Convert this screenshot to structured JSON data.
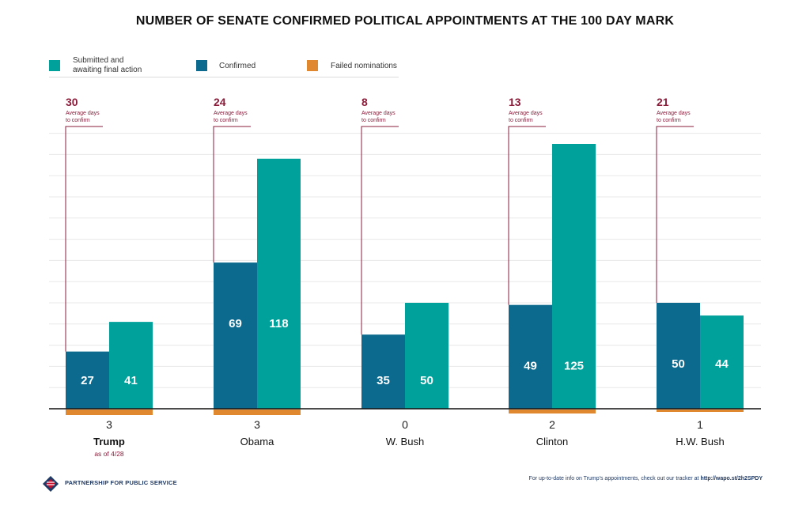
{
  "colors": {
    "submitted": "#00a19a",
    "confirmed": "#0b6a8e",
    "failed": "#e0882f",
    "accent": "#8a1c3a"
  },
  "legend": [
    {
      "key": "submitted",
      "label_line1": "Submitted and",
      "label_line2": "awaiting final action"
    },
    {
      "key": "confirmed",
      "label_line1": "Confirmed",
      "label_line2": ""
    },
    {
      "key": "failed",
      "label_line1": "Failed nominations",
      "label_line2": ""
    }
  ],
  "footer": {
    "org": "PARTNERSHIP FOR PUBLIC SERVICE",
    "note_prefix": "For up-to-date info on Trump's appointments, check out our tracker at ",
    "note_link": "http://wapo.st/2h2SPDY"
  },
  "chart_data": {
    "type": "bar",
    "title": "NUMBER OF SENATE CONFIRMED POLITICAL APPOINTMENTS AT THE 100 DAY MARK",
    "ylim": [
      0,
      130
    ],
    "grid": true,
    "legend_position": "top-left",
    "categories": [
      {
        "name": "Trump",
        "sub": "as of 4/28",
        "bold": true
      },
      {
        "name": "Obama",
        "sub": "",
        "bold": false
      },
      {
        "name": "W. Bush",
        "sub": "",
        "bold": false
      },
      {
        "name": "Clinton",
        "sub": "",
        "bold": false
      },
      {
        "name": "H.W. Bush",
        "sub": "",
        "bold": false
      }
    ],
    "series": [
      {
        "key": "confirmed",
        "name": "Confirmed",
        "values": [
          27,
          69,
          35,
          49,
          50
        ]
      },
      {
        "key": "submitted",
        "name": "Submitted and awaiting final action",
        "values": [
          41,
          118,
          50,
          125,
          44
        ]
      },
      {
        "key": "failed",
        "name": "Failed nominations",
        "values": [
          3,
          3,
          0,
          2,
          1
        ]
      }
    ],
    "avg_days": {
      "values": [
        30,
        24,
        8,
        13,
        21
      ],
      "label_line1": "Average days",
      "label_line2": "to confirm"
    }
  }
}
